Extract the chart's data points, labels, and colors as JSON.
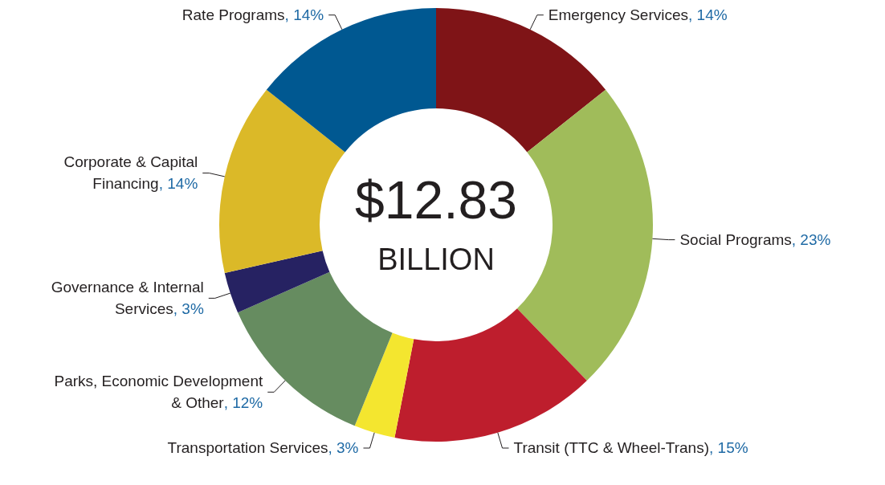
{
  "chart_data": {
    "type": "donut",
    "categories": [
      "Emergency Services",
      "Social Programs",
      "Transit (TTC & Wheel-Trans)",
      "Transportation Services",
      "Parks, Economic Development & Other",
      "Governance & Internal Services",
      "Corporate & Capital Financing",
      "Rate Programs"
    ],
    "values": [
      14,
      23,
      15,
      3,
      12,
      3,
      14,
      14
    ],
    "value_labels": [
      ", 14%",
      ", 23%",
      ", 15%",
      ", 3%",
      ", 12%",
      ", 3%",
      ", 14%",
      ", 14%"
    ],
    "colors": [
      "#7f1417",
      "#a0bc5a",
      "#be1e2d",
      "#f4e62f",
      "#668c60",
      "#262262",
      "#dbb928",
      "#005891"
    ],
    "annotations": [
      "$12.83",
      "BILLION"
    ]
  }
}
